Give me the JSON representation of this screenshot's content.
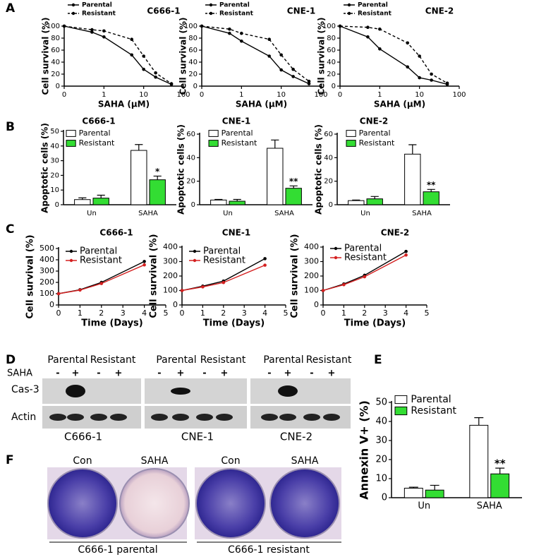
{
  "panel_labels": [
    "A",
    "B",
    "C",
    "D",
    "E",
    "F"
  ],
  "chart_data": [
    {
      "type": "line",
      "title": "C666-1",
      "xscale": "log",
      "x": [
        0.1,
        0.5,
        1,
        5,
        10,
        20,
        50
      ],
      "xlim": [
        0.1,
        100
      ],
      "xticks": [
        {
          "value": 0.1,
          "label": "0"
        },
        1,
        10,
        100
      ],
      "xlabel": "SAHA (μM)",
      "ylim": [
        0,
        100
      ],
      "yticks": [
        0,
        20,
        40,
        60,
        80,
        100
      ],
      "ylabel": "Cell survival (%)",
      "legend": "upper left",
      "series": [
        {
          "name": "Parental",
          "color": "#000000",
          "line_style": "solid",
          "values": [
            100,
            90,
            82,
            52,
            28,
            15,
            3
          ]
        },
        {
          "name": "Resistant",
          "color": "#000000",
          "line_style": "dashed",
          "values": [
            100,
            94,
            92,
            78,
            50,
            22,
            4
          ]
        }
      ]
    },
    {
      "type": "line",
      "title": "CNE-1",
      "xscale": "log",
      "x": [
        0.1,
        0.5,
        1,
        5,
        10,
        20,
        50
      ],
      "xlim": [
        0.1,
        100
      ],
      "xticks": [
        {
          "value": 0.1,
          "label": "0"
        },
        1,
        10,
        100
      ],
      "xlabel": "SAHA (μM)",
      "ylim": [
        0,
        100
      ],
      "yticks": [
        0,
        20,
        40,
        60,
        80,
        100
      ],
      "ylabel": "Cell survival (%)",
      "legend": "upper left",
      "series": [
        {
          "name": "Parental",
          "color": "#000000",
          "line_style": "solid",
          "values": [
            100,
            88,
            75,
            50,
            27,
            16,
            4
          ]
        },
        {
          "name": "Resistant",
          "color": "#000000",
          "line_style": "dashed",
          "values": [
            100,
            95,
            88,
            78,
            52,
            28,
            8
          ]
        }
      ]
    },
    {
      "type": "line",
      "title": "CNE-2",
      "xscale": "log",
      "x": [
        0.1,
        0.5,
        1,
        5,
        10,
        20,
        50
      ],
      "xlim": [
        0.1,
        100
      ],
      "xticks": [
        {
          "value": 0.1,
          "label": "0"
        },
        1,
        10,
        100
      ],
      "xlabel": "SAHA (μM)",
      "ylim": [
        0,
        100
      ],
      "yticks": [
        0,
        20,
        40,
        60,
        80,
        100
      ],
      "ylabel": "Cell survival (%)",
      "legend": "upper left",
      "series": [
        {
          "name": "Parental",
          "color": "#000000",
          "line_style": "solid",
          "values": [
            100,
            82,
            62,
            32,
            14,
            10,
            3
          ]
        },
        {
          "name": "Resistant",
          "color": "#000000",
          "line_style": "dashed",
          "values": [
            100,
            98,
            95,
            72,
            50,
            20,
            5
          ]
        }
      ]
    },
    {
      "type": "bar",
      "title": "C666-1",
      "categories": [
        "Un",
        "SAHA"
      ],
      "ylim": [
        0,
        50
      ],
      "yticks": [
        0,
        10,
        20,
        30,
        40,
        50
      ],
      "ylabel": "Apoptotic cells (%)",
      "legend": "upper left",
      "series": [
        {
          "name": "Parental",
          "color": "#ffffff",
          "values": [
            3.5,
            37
          ],
          "errors": [
            1.2,
            4
          ],
          "significance": [
            null,
            null
          ]
        },
        {
          "name": "Resistant",
          "color": "#33dd33",
          "values": [
            4.5,
            17
          ],
          "errors": [
            2,
            2.5
          ],
          "significance": [
            null,
            "*"
          ]
        }
      ]
    },
    {
      "type": "bar",
      "title": "CNE-1",
      "categories": [
        "Un",
        "SAHA"
      ],
      "ylim": [
        0,
        60
      ],
      "yticks": [
        0,
        20,
        40,
        60
      ],
      "ylabel": "Apoptotic cells (%)",
      "legend": "upper left",
      "series": [
        {
          "name": "Parental",
          "color": "#ffffff",
          "values": [
            4,
            48
          ],
          "errors": [
            0.5,
            7
          ],
          "significance": [
            null,
            null
          ]
        },
        {
          "name": "Resistant",
          "color": "#33dd33",
          "values": [
            3,
            14
          ],
          "errors": [
            1.5,
            2
          ],
          "significance": [
            null,
            "**"
          ]
        }
      ]
    },
    {
      "type": "bar",
      "title": "CNE-2",
      "categories": [
        "Un",
        "SAHA"
      ],
      "ylim": [
        0,
        60
      ],
      "yticks": [
        0,
        20,
        40,
        60
      ],
      "ylabel": "Apoptotic cells (%)",
      "legend": "upper left",
      "series": [
        {
          "name": "Parental",
          "color": "#ffffff",
          "values": [
            3.5,
            43
          ],
          "errors": [
            0.5,
            8
          ],
          "significance": [
            null,
            null
          ]
        },
        {
          "name": "Resistant",
          "color": "#33dd33",
          "values": [
            5,
            11
          ],
          "errors": [
            2,
            2
          ],
          "significance": [
            null,
            "**"
          ]
        }
      ]
    },
    {
      "type": "line",
      "title": "C666-1",
      "x": [
        0,
        1,
        2,
        4
      ],
      "xlim": [
        0,
        5
      ],
      "xticks": [
        0,
        1,
        2,
        3,
        4,
        5
      ],
      "xlabel": "Time (Days)",
      "ylim": [
        0,
        500
      ],
      "yticks": [
        0,
        100,
        200,
        300,
        400,
        500
      ],
      "ylabel": "Cell survival (%)",
      "legend": "upper left",
      "series": [
        {
          "name": "Parental",
          "color": "#000000",
          "line_style": "solid",
          "values": [
            100,
            135,
            200,
            385
          ]
        },
        {
          "name": "Resistant",
          "color": "#d42020",
          "line_style": "solid",
          "values": [
            100,
            132,
            190,
            355
          ]
        }
      ]
    },
    {
      "type": "line",
      "title": "CNE-1",
      "x": [
        0,
        1,
        2,
        4
      ],
      "xlim": [
        0,
        5
      ],
      "xticks": [
        0,
        1,
        2,
        3,
        4,
        5
      ],
      "xlabel": "Time (Days)",
      "ylim": [
        0,
        400
      ],
      "yticks": [
        0,
        100,
        200,
        300,
        400
      ],
      "ylabel": "Cell survival (%)",
      "legend": "upper left",
      "series": [
        {
          "name": "Parental",
          "color": "#000000",
          "line_style": "solid",
          "values": [
            100,
            130,
            165,
            320
          ]
        },
        {
          "name": "Resistant",
          "color": "#d42020",
          "line_style": "solid",
          "values": [
            100,
            125,
            155,
            275
          ]
        }
      ]
    },
    {
      "type": "line",
      "title": "CNE-2",
      "x": [
        0,
        1,
        2,
        4
      ],
      "xlim": [
        0,
        5
      ],
      "xticks": [
        0,
        1,
        2,
        3,
        4,
        5
      ],
      "xlabel": "Time (Days)",
      "ylim": [
        0,
        400
      ],
      "yticks": [
        0,
        100,
        200,
        300,
        400
      ],
      "ylabel": "Cell survival (%)",
      "legend": "upper left",
      "series": [
        {
          "name": "Parental",
          "color": "#000000",
          "line_style": "solid",
          "values": [
            100,
            145,
            205,
            370
          ]
        },
        {
          "name": "Resistant",
          "color": "#d42020",
          "line_style": "solid",
          "values": [
            100,
            140,
            195,
            345
          ]
        }
      ]
    },
    {
      "type": "bar",
      "categories": [
        "Un",
        "SAHA"
      ],
      "ylim": [
        0,
        50
      ],
      "yticks": [
        0,
        10,
        20,
        30,
        40,
        50
      ],
      "ylabel": "Annexin V+ (%)",
      "legend": "upper left",
      "series": [
        {
          "name": "Parental",
          "color": "#ffffff",
          "values": [
            5,
            38
          ],
          "errors": [
            0.5,
            4
          ],
          "significance": [
            null,
            null
          ]
        },
        {
          "name": "Resistant",
          "color": "#33dd33",
          "values": [
            4,
            12.5
          ],
          "errors": [
            2.5,
            3
          ],
          "significance": [
            null,
            "**"
          ]
        }
      ]
    }
  ],
  "blot": {
    "conditions": [
      "Parental",
      "Resistant",
      "Parental",
      "Resistant",
      "Parental",
      "Resistant"
    ],
    "treatment_label": "SAHA",
    "lane_signs": [
      "-",
      "+",
      "-",
      "+",
      "-",
      "+",
      "-",
      "+",
      "-",
      "+",
      "-",
      "+"
    ],
    "row_labels": [
      "Cas-3",
      "Actin"
    ],
    "cell_lines": [
      "C666-1",
      "CNE-1",
      "CNE-2"
    ]
  },
  "plates": {
    "wells": [
      "Con",
      "SAHA",
      "Con",
      "SAHA"
    ],
    "groups": [
      "C666-1 parental",
      "C666-1 resistant"
    ]
  }
}
